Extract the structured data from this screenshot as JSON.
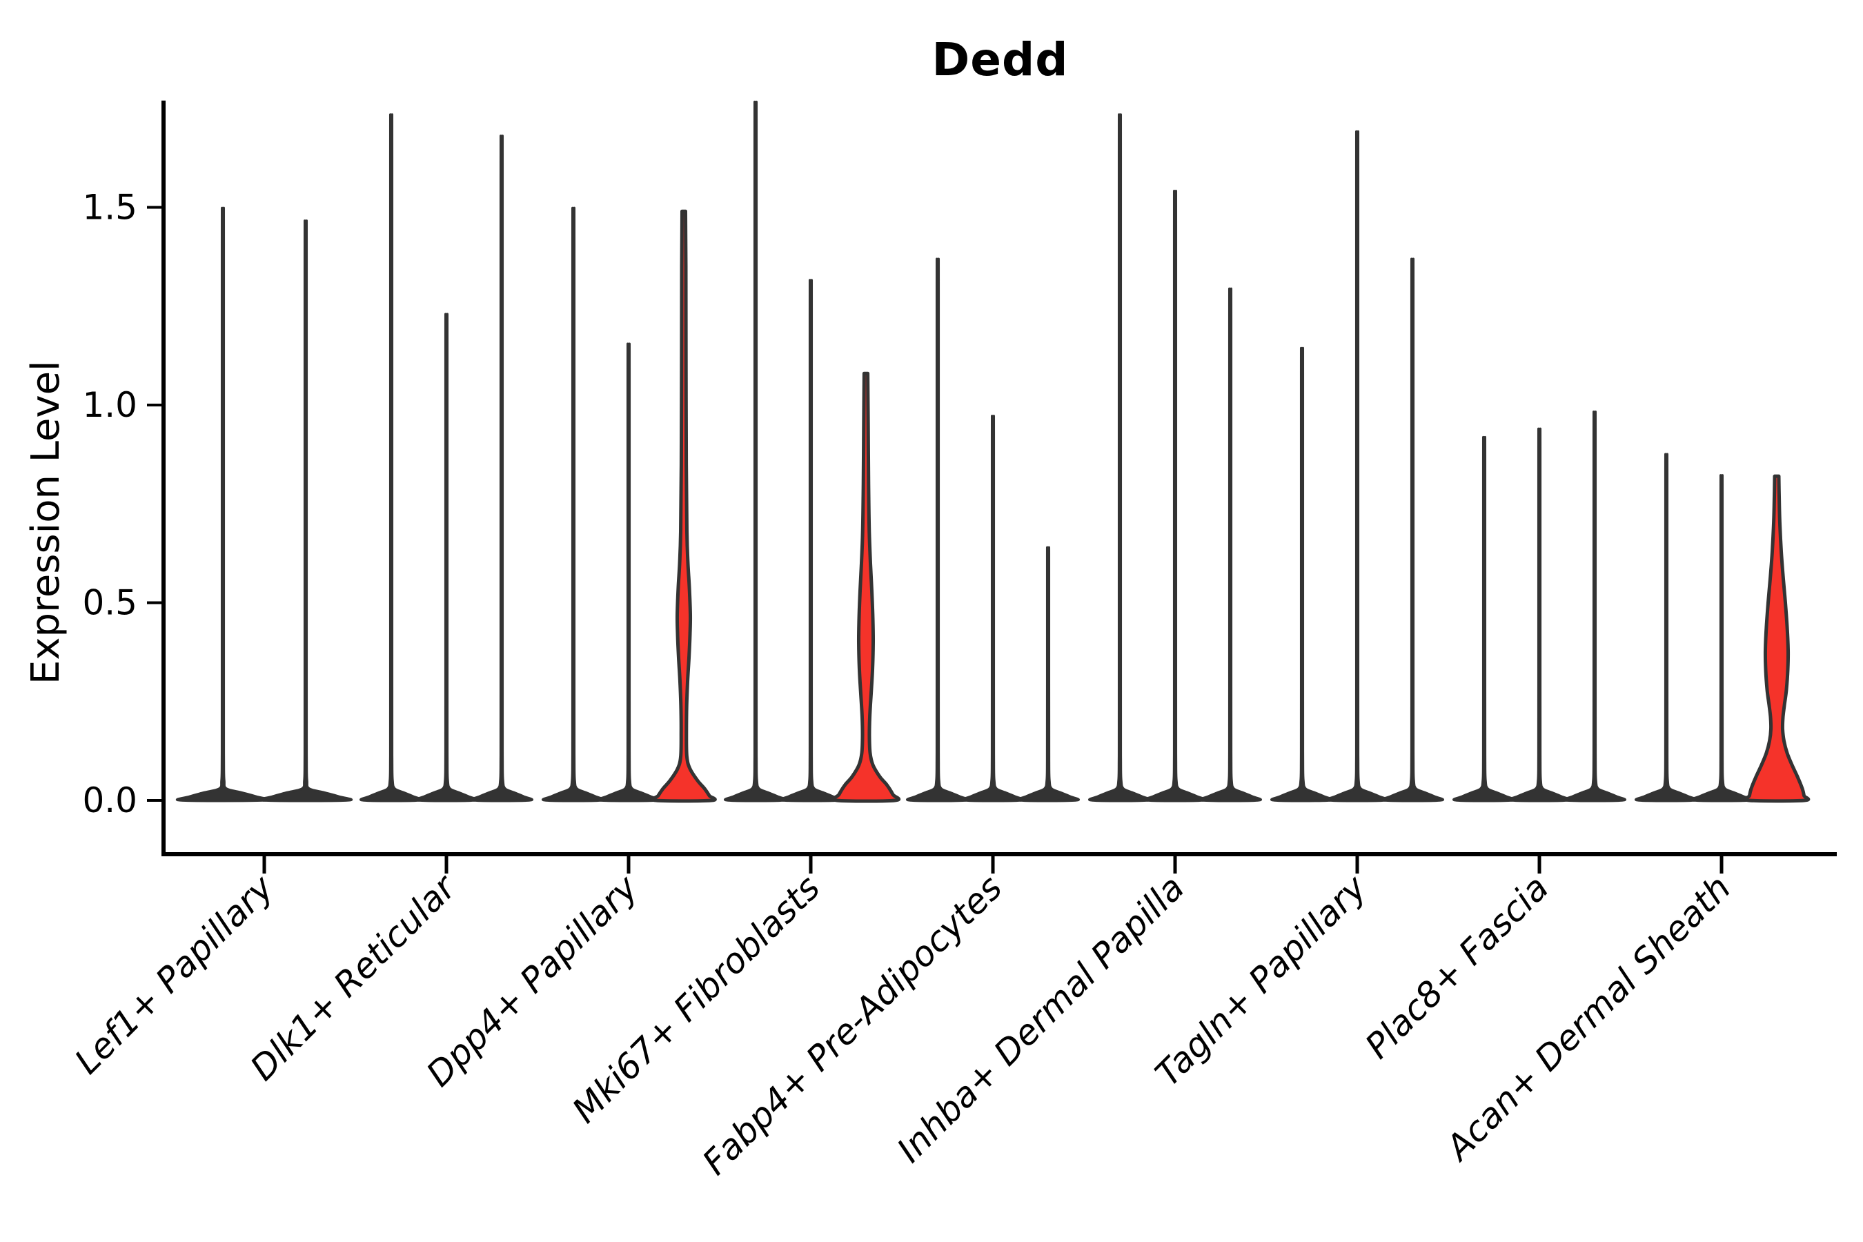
{
  "chart_data": {
    "type": "violin",
    "title": "Dedd",
    "ylabel": "Expression Level",
    "ylim": [
      -0.14,
      1.77
    ],
    "yticks": [
      0.0,
      0.5,
      1.0,
      1.5
    ],
    "ytick_labels": [
      "0.0",
      "0.5",
      "1.0",
      "1.5"
    ],
    "legend": "none",
    "grid": false,
    "fill_color": "#f5332a",
    "outline_color": "#333333",
    "axis_color": "#000000",
    "groups": [
      {
        "category": "Lef1+ Papillary",
        "violins": [
          {
            "type": "spike",
            "max": 1.43
          },
          {
            "type": "spike",
            "max": 1.4
          }
        ]
      },
      {
        "category": "Dlk1+ Reticular",
        "violins": [
          {
            "type": "spike",
            "max": 1.65
          },
          {
            "type": "spike",
            "max": 1.18
          },
          {
            "type": "spike",
            "max": 1.6
          }
        ]
      },
      {
        "category": "Dpp4+ Papillary",
        "violins": [
          {
            "type": "spike",
            "max": 1.43
          },
          {
            "type": "spike",
            "max": 1.11
          },
          {
            "type": "violin",
            "max": 1.49,
            "bulge_center": 0.44,
            "bulge_range": [
              0.32,
              0.56
            ],
            "profile": [
              [
                1.49,
                2.5
              ],
              [
                1.35,
                3
              ],
              [
                1.1,
                3.2
              ],
              [
                0.85,
                3.6
              ],
              [
                0.68,
                4.5
              ],
              [
                0.6,
                6
              ],
              [
                0.54,
                8
              ],
              [
                0.47,
                9.5
              ],
              [
                0.42,
                9
              ],
              [
                0.36,
                7.5
              ],
              [
                0.3,
                5.5
              ],
              [
                0.24,
                4.2
              ],
              [
                0.17,
                3.8
              ],
              [
                0.11,
                4.5
              ],
              [
                0.08,
                9
              ],
              [
                0.05,
                20
              ],
              [
                0.03,
                30
              ],
              [
                0.012,
                37
              ],
              [
                0,
                40
              ]
            ]
          }
        ]
      },
      {
        "category": "Mki67+ Fibroblasts",
        "violins": [
          {
            "type": "spike",
            "max": 1.68
          },
          {
            "type": "spike",
            "max": 1.26
          },
          {
            "type": "violin",
            "max": 1.08,
            "bulge_center": 0.38,
            "bulge_range": [
              0.21,
              0.56
            ],
            "profile": [
              [
                1.08,
                2.6
              ],
              [
                0.95,
                3.2
              ],
              [
                0.8,
                3.8
              ],
              [
                0.68,
                4.8
              ],
              [
                0.6,
                6.5
              ],
              [
                0.53,
                8.5
              ],
              [
                0.46,
                10
              ],
              [
                0.4,
                10.5
              ],
              [
                0.33,
                9.5
              ],
              [
                0.27,
                7.5
              ],
              [
                0.21,
                5.5
              ],
              [
                0.16,
                5
              ],
              [
                0.12,
                6
              ],
              [
                0.09,
                10
              ],
              [
                0.06,
                20
              ],
              [
                0.04,
                30
              ],
              [
                0.015,
                39
              ],
              [
                0,
                42
              ]
            ]
          }
        ]
      },
      {
        "category": "Fabp4+ Pre-Adipocytes",
        "violins": [
          {
            "type": "spike",
            "max": 1.31
          },
          {
            "type": "spike",
            "max": 0.94
          },
          {
            "type": "spike",
            "max": 0.63
          }
        ]
      },
      {
        "category": "Inhba+ Dermal Papilla",
        "violins": [
          {
            "type": "spike",
            "max": 1.65
          },
          {
            "type": "spike",
            "max": 1.47
          },
          {
            "type": "spike",
            "max": 1.24
          }
        ]
      },
      {
        "category": "Tagln+ Papillary",
        "violins": [
          {
            "type": "spike",
            "max": 1.1
          },
          {
            "type": "spike",
            "max": 1.61
          },
          {
            "type": "spike",
            "max": 1.31
          }
        ]
      },
      {
        "category": "Plac8+ Fascia",
        "violins": [
          {
            "type": "spike",
            "max": 0.89
          },
          {
            "type": "spike",
            "max": 0.91
          },
          {
            "type": "spike",
            "max": 0.95
          }
        ]
      },
      {
        "category": "Acan+ Dermal Sheath",
        "violins": [
          {
            "type": "spike",
            "max": 0.85
          },
          {
            "type": "spike",
            "max": 0.8
          },
          {
            "type": "violin",
            "max": 0.82,
            "bulge_center": 0.36,
            "bulge_range": [
              0.2,
              0.55
            ],
            "profile": [
              [
                0.82,
                3
              ],
              [
                0.76,
                3.6
              ],
              [
                0.7,
                4.5
              ],
              [
                0.63,
                6.5
              ],
              [
                0.56,
                9.5
              ],
              [
                0.5,
                12.5
              ],
              [
                0.44,
                15
              ],
              [
                0.38,
                16.5
              ],
              [
                0.33,
                16
              ],
              [
                0.28,
                14
              ],
              [
                0.24,
                11
              ],
              [
                0.21,
                9
              ],
              [
                0.18,
                8.5
              ],
              [
                0.15,
                10.5
              ],
              [
                0.12,
                15
              ],
              [
                0.09,
                22
              ],
              [
                0.06,
                30
              ],
              [
                0.03,
                37
              ],
              [
                0.012,
                39.5
              ],
              [
                0,
                40
              ]
            ]
          }
        ]
      }
    ]
  }
}
